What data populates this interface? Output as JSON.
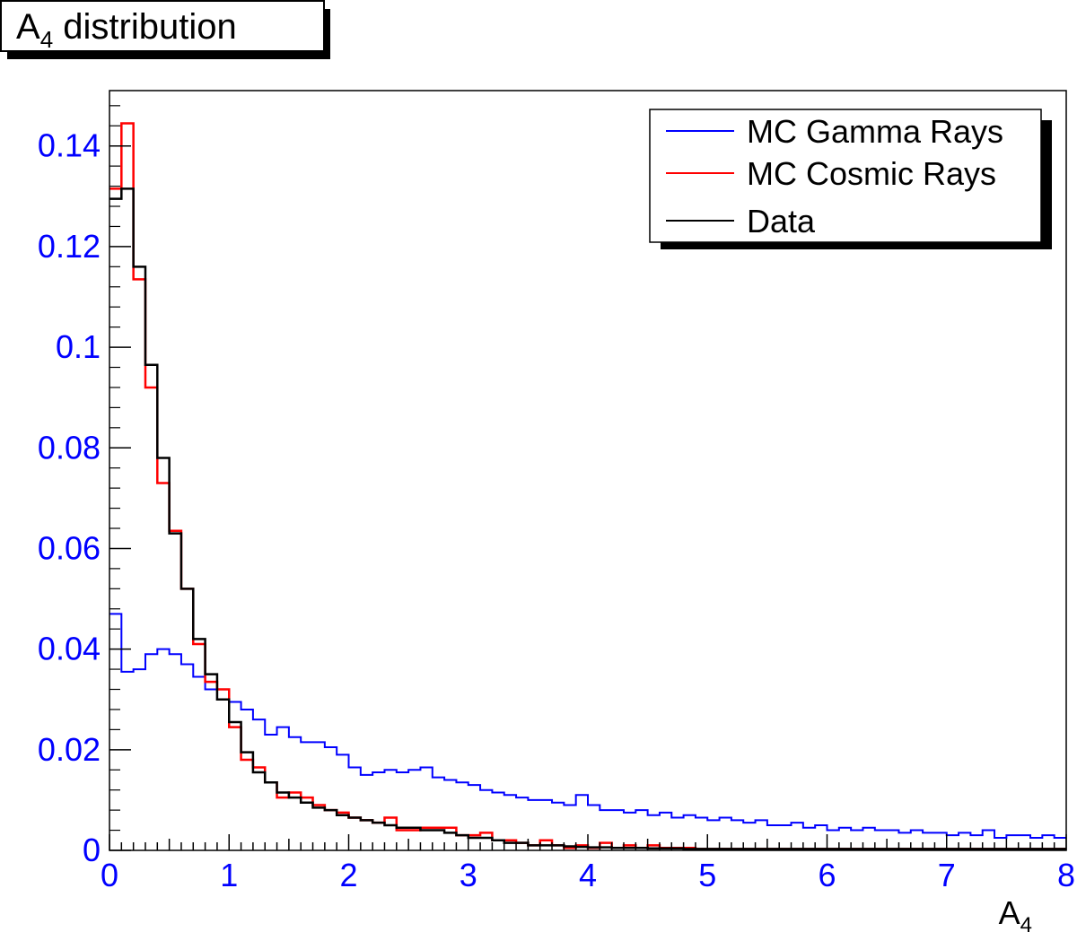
{
  "chart_data": {
    "type": "line",
    "title": "A",
    "title_sub": "4",
    "title_rest": " distribution",
    "xlabel": "A",
    "xlabel_sub": "4",
    "ylabel": "",
    "xlim": [
      0,
      8
    ],
    "ylim": [
      0,
      0.151
    ],
    "x_ticks": [
      "0",
      "1",
      "2",
      "3",
      "4",
      "5",
      "6",
      "7",
      "8"
    ],
    "y_ticks": [
      "0",
      "0.02",
      "0.04",
      "0.06",
      "0.08",
      "0.1",
      "0.12",
      "0.14"
    ],
    "y_tick_values": [
      0,
      0.02,
      0.04,
      0.06,
      0.08,
      0.1,
      0.12,
      0.14
    ],
    "bin_width": 0.1,
    "grid": false,
    "legend_position": "top-right",
    "tick_label_color": "#0000ff",
    "series": [
      {
        "name": "MC Gamma Rays",
        "color": "#0000ff",
        "values": [
          0.047,
          0.0355,
          0.036,
          0.039,
          0.04,
          0.039,
          0.037,
          0.0345,
          0.032,
          0.03,
          0.0295,
          0.028,
          0.026,
          0.023,
          0.0245,
          0.0225,
          0.0215,
          0.0215,
          0.0205,
          0.019,
          0.0165,
          0.015,
          0.0155,
          0.016,
          0.0155,
          0.016,
          0.0165,
          0.0145,
          0.014,
          0.0135,
          0.013,
          0.012,
          0.0115,
          0.011,
          0.0105,
          0.01,
          0.01,
          0.0095,
          0.009,
          0.011,
          0.009,
          0.008,
          0.008,
          0.0075,
          0.008,
          0.007,
          0.0075,
          0.0065,
          0.007,
          0.0065,
          0.006,
          0.0065,
          0.006,
          0.0055,
          0.006,
          0.005,
          0.005,
          0.0055,
          0.0045,
          0.005,
          0.004,
          0.0045,
          0.004,
          0.0045,
          0.004,
          0.004,
          0.0035,
          0.004,
          0.0035,
          0.0035,
          0.003,
          0.0035,
          0.003,
          0.004,
          0.0025,
          0.003,
          0.003,
          0.0025,
          0.003,
          0.0025
        ]
      },
      {
        "name": "MC Cosmic Rays",
        "color": "#ff0000",
        "values": [
          0.1315,
          0.1445,
          0.1135,
          0.092,
          0.073,
          0.0635,
          0.052,
          0.041,
          0.0335,
          0.032,
          0.0245,
          0.018,
          0.0165,
          0.0135,
          0.0105,
          0.0115,
          0.0105,
          0.009,
          0.008,
          0.0075,
          0.0065,
          0.006,
          0.0055,
          0.0065,
          0.004,
          0.004,
          0.0045,
          0.0045,
          0.0045,
          0.003,
          0.003,
          0.0035,
          0.002,
          0.002,
          0.0015,
          0.001,
          0.002,
          0.001,
          0.0005,
          0.001,
          0.0005,
          0.0015,
          0.0005,
          0.001,
          0.0005,
          0.001,
          0.0005,
          0.0005,
          0.0005,
          0.0003,
          0.0003,
          0.0003,
          0.0003,
          0.0003,
          0.0003,
          0.0003,
          0.0003,
          0.0003,
          0.0003,
          0.0003,
          0.0003,
          0.0003,
          0.0003,
          0.0003,
          0.0003,
          0.0003,
          0.0003,
          0.0003,
          0.0003,
          0.0003,
          0.0003,
          0.0003,
          0.0003,
          0.0003,
          0.0003,
          0.0003,
          0.0003,
          0.0003,
          0.0003,
          0.0003
        ]
      },
      {
        "name": "Data",
        "color": "#000000",
        "values": [
          0.1295,
          0.1315,
          0.116,
          0.0965,
          0.078,
          0.063,
          0.052,
          0.042,
          0.035,
          0.03,
          0.0255,
          0.0195,
          0.0155,
          0.0135,
          0.0115,
          0.0105,
          0.0095,
          0.0085,
          0.008,
          0.007,
          0.0065,
          0.006,
          0.0055,
          0.005,
          0.0045,
          0.0045,
          0.004,
          0.004,
          0.0035,
          0.003,
          0.0025,
          0.0025,
          0.002,
          0.0015,
          0.0015,
          0.001,
          0.001,
          0.001,
          0.0008,
          0.0007,
          0.0006,
          0.0006,
          0.0005,
          0.0005,
          0.0005,
          0.0004,
          0.0004,
          0.0004,
          0.0003,
          0.0003,
          0.0003,
          0.0003,
          0.0003,
          0.0003,
          0.0003,
          0.0003,
          0.0003,
          0.0003,
          0.0003,
          0.0003,
          0.0003,
          0.0003,
          0.0003,
          0.0003,
          0.0003,
          0.0003,
          0.0003,
          0.0003,
          0.0003,
          0.0003,
          0.0003,
          0.0003,
          0.0003,
          0.0003,
          0.0003,
          0.0003,
          0.0003,
          0.0003,
          0.0003,
          0.0003
        ]
      }
    ]
  }
}
